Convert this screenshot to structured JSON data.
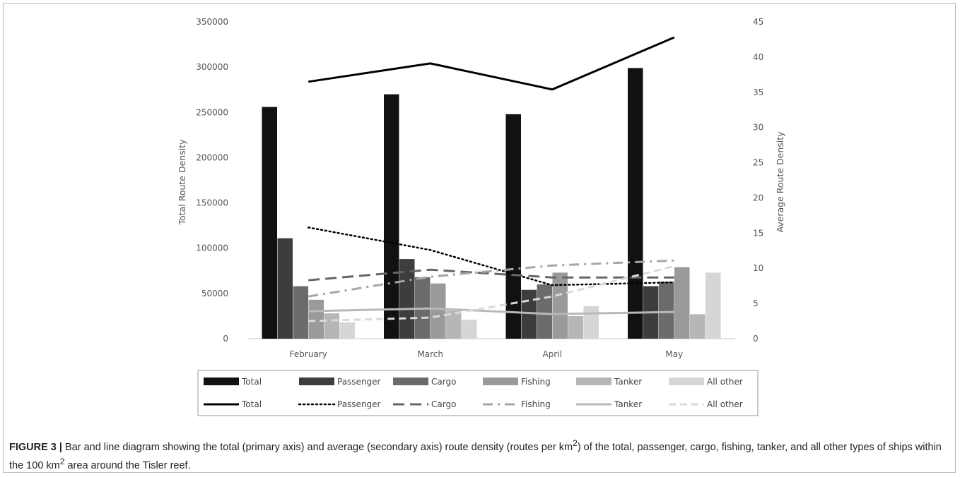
{
  "chart_data": {
    "type": "bar",
    "categories": [
      "February",
      "March",
      "April",
      "May"
    ],
    "y_left": {
      "label": "Total Route Density",
      "range": [
        0,
        350000
      ],
      "ticks": [
        "0",
        "50000",
        "100000",
        "150000",
        "200000",
        "250000",
        "300000",
        "350000"
      ]
    },
    "y_right": {
      "label": "Average Route Density",
      "range": [
        0,
        45
      ],
      "ticks": [
        "0",
        "5",
        "10",
        "15",
        "20",
        "25",
        "30",
        "35",
        "40",
        "45"
      ]
    },
    "bar_series": [
      {
        "name": "Total",
        "color": "#111111",
        "values": [
          256000,
          270000,
          248000,
          299000
        ]
      },
      {
        "name": "Passenger",
        "color": "#3d3d3d",
        "values": [
          111000,
          88000,
          54000,
          58000
        ]
      },
      {
        "name": "Cargo",
        "color": "#6b6b6b",
        "values": [
          58000,
          68000,
          60000,
          63000
        ]
      },
      {
        "name": "Fishing",
        "color": "#9a9a9a",
        "values": [
          43000,
          61000,
          73000,
          79000
        ]
      },
      {
        "name": "Tanker",
        "color": "#b6b6b6",
        "values": [
          28000,
          31000,
          25000,
          27000
        ]
      },
      {
        "name": "All other",
        "color": "#d6d6d6",
        "values": [
          18000,
          21000,
          36000,
          73000
        ]
      }
    ],
    "line_series": [
      {
        "name": "Total",
        "color": "#000000",
        "style": "solid",
        "width": 3,
        "values": [
          36.5,
          39.1,
          35.4,
          42.8
        ]
      },
      {
        "name": "Passenger",
        "color": "#000000",
        "style": "dotted",
        "width": 2.5,
        "values": [
          15.8,
          12.6,
          7.6,
          8.0
        ]
      },
      {
        "name": "Cargo",
        "color": "#666666",
        "style": "longdash",
        "width": 3,
        "values": [
          8.3,
          9.8,
          8.7,
          8.7
        ]
      },
      {
        "name": "Fishing",
        "color": "#a6a6a6",
        "style": "dashdot",
        "width": 3,
        "values": [
          6.0,
          8.8,
          10.4,
          11.1
        ]
      },
      {
        "name": "Tanker",
        "color": "#b9b9b9",
        "style": "solid",
        "width": 3,
        "values": [
          3.9,
          4.3,
          3.5,
          3.8
        ]
      },
      {
        "name": "All other",
        "color": "#d9d9d9",
        "style": "dashed",
        "width": 3,
        "values": [
          2.5,
          3.0,
          6.0,
          10.3
        ]
      }
    ],
    "legend_position": "bottom"
  },
  "caption": {
    "label": "FIGURE 3 |",
    "text_before_1": " Bar and line diagram showing the total (primary axis) and average (secondary axis) route density (routes per km",
    "sup_1": "2",
    "text_middle": ") of the total, passenger, cargo, fishing, tanker, and all other types of ships within the 100 km",
    "sup_2": "2",
    "text_after": " area around the Tisler reef."
  }
}
